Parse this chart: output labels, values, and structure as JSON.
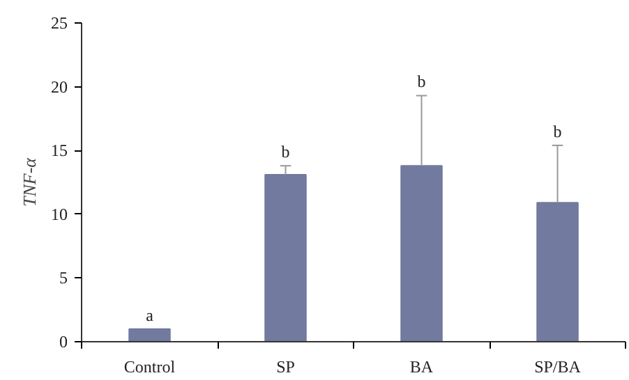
{
  "chart_data": {
    "type": "bar",
    "ylabel": "TNF-α",
    "categories": [
      "Control",
      "SP",
      "BA",
      "SP/BA"
    ],
    "values": [
      1.0,
      13.1,
      13.8,
      10.9
    ],
    "errors": [
      null,
      [
        13.1,
        13.8
      ],
      [
        13.8,
        19.3
      ],
      [
        10.9,
        15.4
      ]
    ],
    "color": "#727a9f",
    "ylim": [
      0,
      25
    ],
    "yticks": [
      0,
      5,
      10,
      15,
      20,
      25
    ],
    "grid": false,
    "annotations": [
      {
        "text": "a",
        "x": "Control",
        "y": 1.0
      },
      {
        "text": "b",
        "x": "SP",
        "y": 13.8
      },
      {
        "text": "b",
        "x": "BA",
        "y": 19.3
      },
      {
        "text": "b",
        "x": "SP/BA",
        "y": 15.4
      }
    ]
  }
}
